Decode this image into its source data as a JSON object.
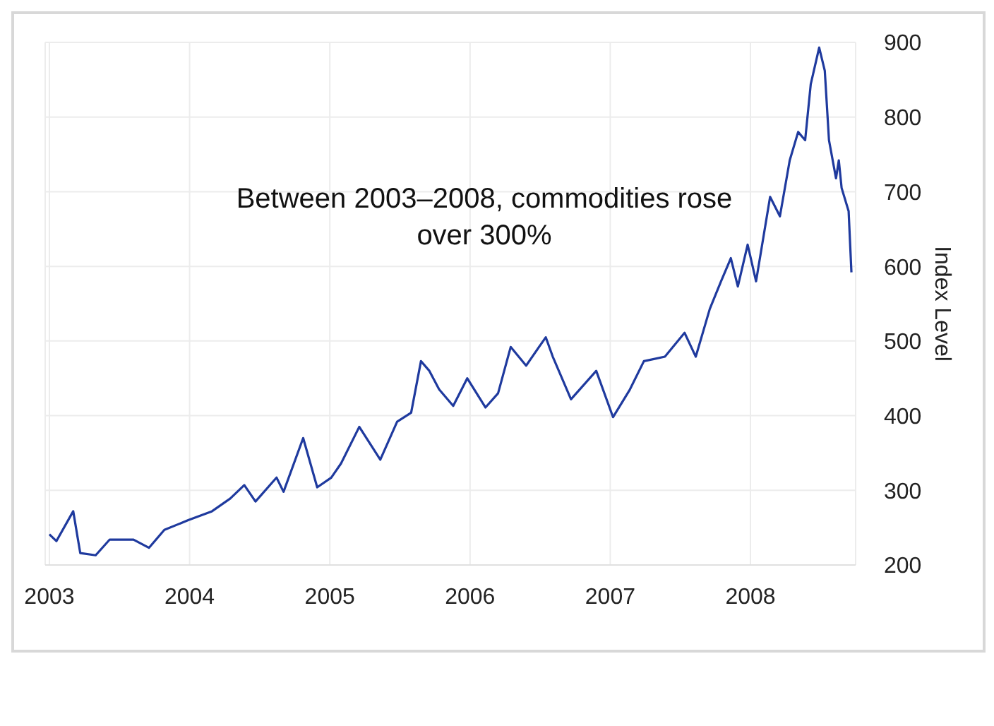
{
  "chart_data": {
    "type": "line",
    "ylabel": "Index Level",
    "annotations": [
      "Between 2003–2008, commodities rose over 300%"
    ],
    "x": [
      2003.0,
      2003.05,
      2003.17,
      2003.22,
      2003.33,
      2003.43,
      2003.6,
      2003.71,
      2003.82,
      2003.99,
      2004.16,
      2004.29,
      2004.39,
      2004.47,
      2004.62,
      2004.67,
      2004.81,
      2004.91,
      2005.01,
      2005.08,
      2005.21,
      2005.36,
      2005.48,
      2005.58,
      2005.65,
      2005.71,
      2005.78,
      2005.88,
      2005.98,
      2006.11,
      2006.2,
      2006.29,
      2006.4,
      2006.54,
      2006.59,
      2006.72,
      2006.9,
      2007.02,
      2007.14,
      2007.24,
      2007.39,
      2007.53,
      2007.61,
      2007.71,
      2007.79,
      2007.86,
      2007.91,
      2007.98,
      2008.04,
      2008.14,
      2008.21,
      2008.28,
      2008.34,
      2008.39,
      2008.43,
      2008.49,
      2008.53,
      2008.56,
      2008.61,
      2008.63,
      2008.65,
      2008.7,
      2008.72
    ],
    "series": [
      {
        "color": "#1f3a9e",
        "values": [
          241,
          232,
          272,
          216,
          213,
          234,
          234,
          223,
          247,
          260,
          272,
          289,
          307,
          285,
          317,
          298,
          370,
          304,
          317,
          336,
          385,
          341,
          392,
          404,
          473,
          460,
          435,
          413,
          450,
          411,
          430,
          492,
          467,
          505,
          479,
          422,
          460,
          398,
          435,
          473,
          479,
          511,
          479,
          543,
          580,
          611,
          573,
          629,
          580,
          693,
          667,
          742,
          780,
          769,
          844,
          893,
          862,
          769,
          718,
          742,
          705,
          674,
          592
        ]
      }
    ],
    "xlim": [
      2002.97,
      2008.75
    ],
    "xticks": [
      2003,
      2004,
      2005,
      2006,
      2007,
      2008
    ],
    "ylim": [
      200,
      900
    ],
    "yticks": [
      200,
      300,
      400,
      500,
      600,
      700,
      800,
      900
    ],
    "grid": true,
    "marker": "none",
    "line_style": "solid",
    "legend": false
  }
}
